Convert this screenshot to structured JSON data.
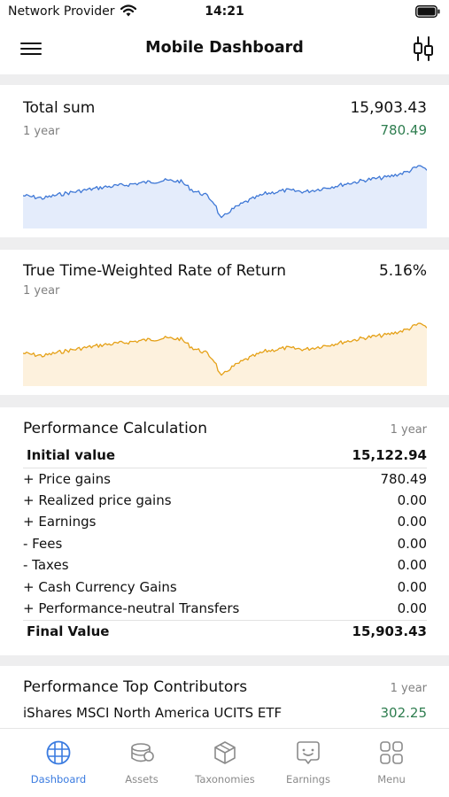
{
  "status_bar": {
    "carrier": "Network Provider",
    "time": "14:21"
  },
  "header": {
    "title": "Mobile Dashboard"
  },
  "total_sum": {
    "label": "Total sum",
    "value": "15,903.43",
    "period": "1 year",
    "change": "780.49",
    "colors": {
      "line": "#3f78d6",
      "fill": "#e4ecfb"
    }
  },
  "ttwror": {
    "label": "True Time-Weighted Rate of Return",
    "value": "5.16%",
    "period": "1 year",
    "colors": {
      "line": "#e5a118",
      "fill": "#fdf1dd"
    }
  },
  "performance": {
    "title": "Performance Calculation",
    "period": "1 year",
    "initial_label": "Initial value",
    "initial_value": "15,122.94",
    "rows": [
      {
        "label": "+ Price gains",
        "value": "780.49"
      },
      {
        "label": "+ Realized price gains",
        "value": "0.00"
      },
      {
        "label": "+ Earnings",
        "value": "0.00"
      },
      {
        "label": "- Fees",
        "value": "0.00"
      },
      {
        "label": "- Taxes",
        "value": "0.00"
      },
      {
        "label": "+ Cash Currency Gains",
        "value": "0.00"
      },
      {
        "label": "+ Performance-neutral Transfers",
        "value": "0.00"
      }
    ],
    "final_label": "Final Value",
    "final_value": "15,903.43"
  },
  "contributors": {
    "title": "Performance Top Contributors",
    "period": "1 year",
    "items": [
      {
        "name": "iShares MSCI North America UCITS ETF",
        "value": "302.25"
      }
    ]
  },
  "tabs": [
    {
      "label": "Dashboard",
      "icon": "globe-icon",
      "active": true
    },
    {
      "label": "Assets",
      "icon": "coins-icon",
      "active": false
    },
    {
      "label": "Taxonomies",
      "icon": "cube-icon",
      "active": false
    },
    {
      "label": "Earnings",
      "icon": "earnings-icon",
      "active": false
    },
    {
      "label": "Menu",
      "icon": "grid-icon",
      "active": false
    }
  ],
  "colors": {
    "accent": "#3a7be0",
    "positive": "#2e7d4f",
    "inactive": "#8a8a8a"
  }
}
